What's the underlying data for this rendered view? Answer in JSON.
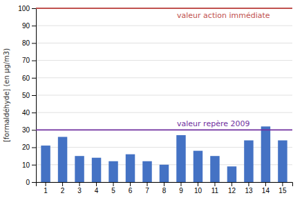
{
  "chart_data": {
    "type": "bar",
    "categories": [
      1,
      2,
      3,
      4,
      5,
      6,
      7,
      8,
      9,
      10,
      11,
      12,
      13,
      14,
      15
    ],
    "values": [
      21,
      26,
      15,
      14,
      12,
      16,
      12,
      10,
      27,
      18,
      15,
      9,
      24,
      32,
      24
    ],
    "color": "#4472C4",
    "y_label": "[formaldéhyde] (en µg/m3)",
    "ylim": [
      0,
      100
    ],
    "yticks": [
      0,
      10,
      20,
      30,
      40,
      50,
      60,
      70,
      80,
      90,
      100
    ],
    "grid": true,
    "reference_lines": [
      {
        "y": 100,
        "label": "valeur action immédiate",
        "color": "#C0504D"
      },
      {
        "y": 30,
        "label": "valeur repère 2009",
        "color": "#7030A0"
      }
    ]
  }
}
